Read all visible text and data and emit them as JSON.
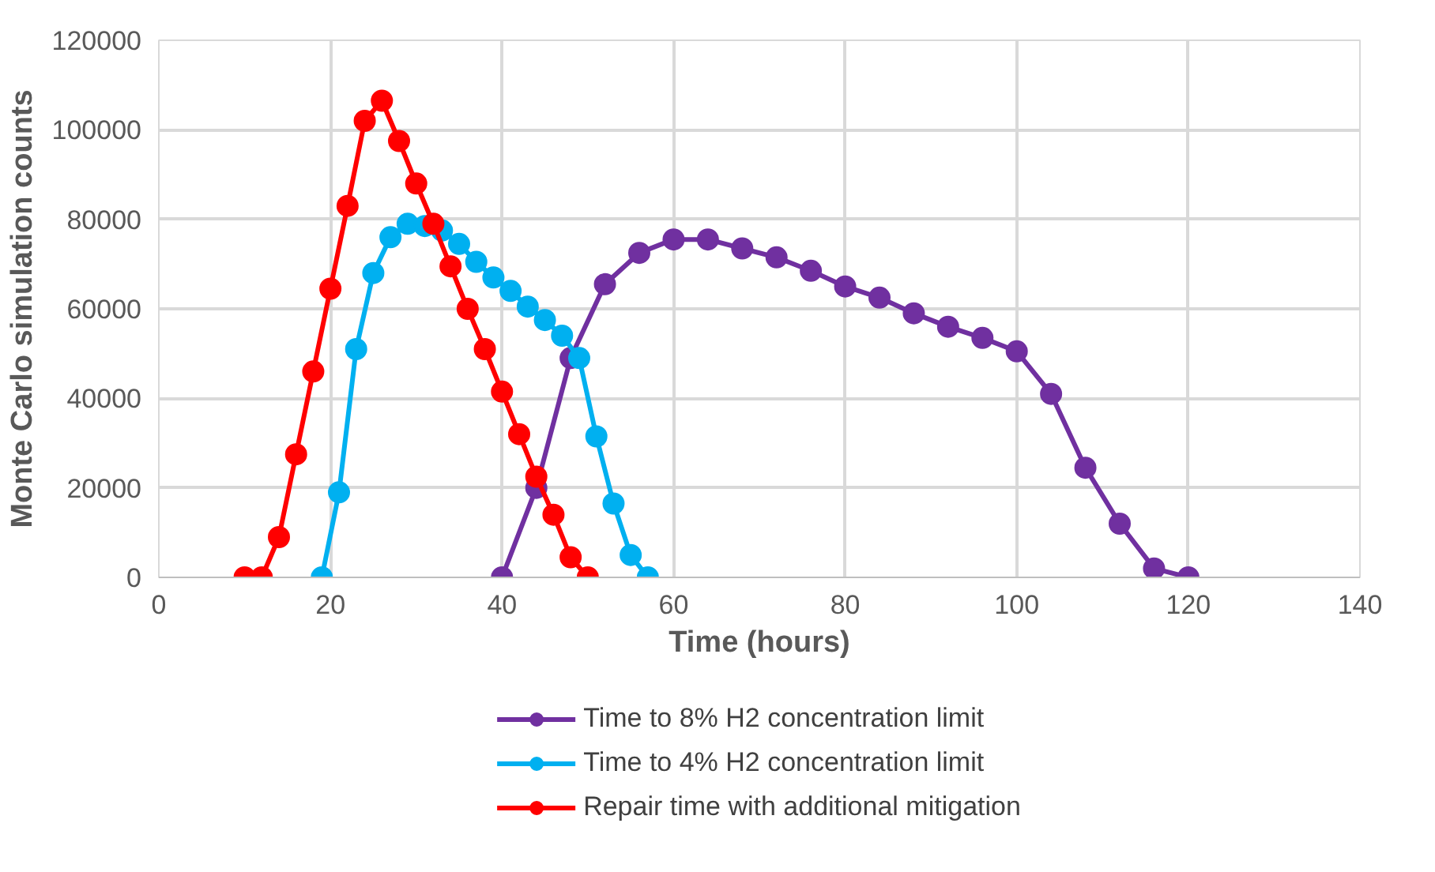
{
  "chart_data": {
    "type": "line",
    "xlabel": "Time (hours)",
    "ylabel": "Monte Carlo simulation counts",
    "xlim": [
      0,
      140
    ],
    "xticks": [
      0,
      20,
      40,
      60,
      80,
      100,
      120,
      140
    ],
    "ylim": [
      0,
      120000
    ],
    "yticks": [
      0,
      20000,
      40000,
      60000,
      80000,
      100000,
      120000
    ],
    "grid": true,
    "legend": "bottom",
    "marker": "circle",
    "line_style": "solid",
    "series": [
      {
        "name": "Time to 8% H2 concentration limit",
        "color": "#7030a0",
        "x": [
          40,
          44,
          48,
          52,
          56,
          60,
          64,
          68,
          72,
          76,
          80,
          84,
          88,
          92,
          96,
          100,
          104,
          108,
          112,
          116,
          120
        ],
        "values": [
          0,
          20000,
          49000,
          65500,
          72500,
          75500,
          75500,
          73500,
          71500,
          68500,
          65000,
          62500,
          59000,
          56000,
          53500,
          50500,
          41000,
          24500,
          12000,
          2000,
          0
        ]
      },
      {
        "name": "Time to 4% H2 concentration limit",
        "color": "#00b0f0",
        "x": [
          19,
          21,
          23,
          25,
          27,
          29,
          31,
          33,
          35,
          37,
          39,
          41,
          43,
          45,
          47,
          49,
          51,
          53,
          55,
          57
        ],
        "values": [
          0,
          19000,
          51000,
          68000,
          76000,
          79000,
          78500,
          77500,
          74500,
          70500,
          67000,
          64000,
          60500,
          57500,
          54000,
          49000,
          31500,
          16500,
          5000,
          0
        ]
      },
      {
        "name": "Repair time with additional mitigation",
        "color": "#ff0000",
        "x": [
          10,
          12,
          14,
          16,
          18,
          20,
          22,
          24,
          26,
          28,
          30,
          32,
          34,
          36,
          38,
          40,
          42,
          44,
          46,
          48,
          50
        ],
        "values": [
          0,
          0,
          9000,
          27500,
          46000,
          64500,
          83000,
          102000,
          106500,
          97500,
          88000,
          79000,
          69500,
          60000,
          51000,
          41500,
          32000,
          22500,
          14000,
          4500,
          0
        ]
      }
    ]
  }
}
